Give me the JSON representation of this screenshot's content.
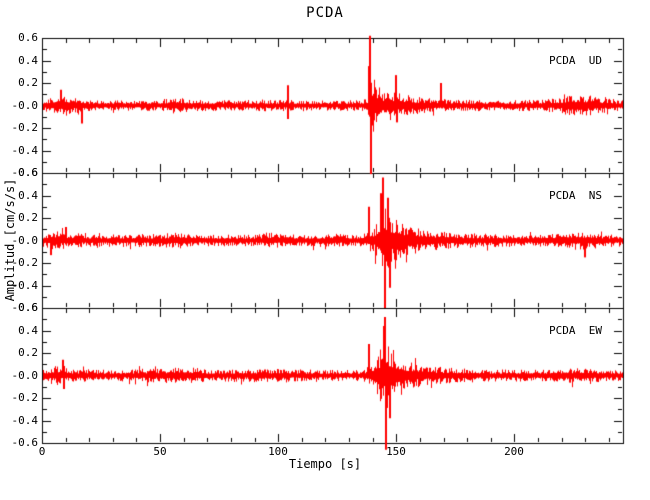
{
  "chart_data": {
    "type": "line",
    "title": "PCDA",
    "xlabel": "Tiempo [s]",
    "ylabel": "Amplitud [cm/s/s]",
    "x_range": [
      0,
      246
    ],
    "x_major_ticks": [
      0,
      50,
      100,
      150,
      200
    ],
    "x_major_tick_labels": [
      "0",
      "50",
      "100",
      "150",
      "200"
    ],
    "x_minor_step": 10,
    "ylim": [
      -0.6,
      0.6
    ],
    "y_tick_values": [
      0.6,
      0.4,
      0.2,
      0.0,
      -0.2,
      -0.4,
      -0.6
    ],
    "y_tick_labels": [
      "0.6",
      "0.4",
      "0.2",
      "-0.0",
      "-0.2",
      "-0.4",
      "-0.6"
    ],
    "y_minor_step": 0.1,
    "grid": false,
    "legend_position": "inside-top-right-per-panel",
    "trace_color": "#ff0000",
    "axis_color": "#000000",
    "background_color": "#ffffff",
    "panels": [
      {
        "label": "PCDA  UD",
        "seed": 101,
        "noise_floor": 0.045,
        "envelope": [
          [
            0,
            0.05
          ],
          [
            4,
            0.08
          ],
          [
            10,
            0.095
          ],
          [
            16,
            0.06
          ],
          [
            22,
            0.045
          ],
          [
            50,
            0.048
          ],
          [
            56,
            0.085
          ],
          [
            62,
            0.055
          ],
          [
            80,
            0.045
          ],
          [
            96,
            0.055
          ],
          [
            100,
            0.05
          ],
          [
            120,
            0.045
          ],
          [
            136,
            0.05
          ],
          [
            138.2,
            0.08
          ],
          [
            139,
            0.3
          ],
          [
            140,
            0.28
          ],
          [
            141.5,
            0.18
          ],
          [
            144,
            0.14
          ],
          [
            148,
            0.13
          ],
          [
            152,
            0.11
          ],
          [
            158,
            0.08
          ],
          [
            168,
            0.06
          ],
          [
            180,
            0.05
          ],
          [
            205,
            0.05
          ],
          [
            215,
            0.06
          ],
          [
            225,
            0.095
          ],
          [
            232,
            0.09
          ],
          [
            240,
            0.06
          ],
          [
            246,
            0.055
          ]
        ],
        "spikes": [
          [
            139.0,
            0.62
          ],
          [
            139.25,
            -0.61
          ],
          [
            138.6,
            0.35
          ],
          [
            104,
            0.18
          ],
          [
            104.3,
            -0.12
          ],
          [
            150,
            0.27
          ],
          [
            150.3,
            -0.15
          ],
          [
            169,
            0.2
          ],
          [
            17,
            -0.16
          ],
          [
            8,
            0.14
          ]
        ]
      },
      {
        "label": "PCDA  NS",
        "seed": 202,
        "noise_floor": 0.05,
        "envelope": [
          [
            0,
            0.055
          ],
          [
            5,
            0.085
          ],
          [
            12,
            0.07
          ],
          [
            20,
            0.055
          ],
          [
            50,
            0.06
          ],
          [
            57,
            0.075
          ],
          [
            65,
            0.055
          ],
          [
            90,
            0.05
          ],
          [
            96,
            0.075
          ],
          [
            102,
            0.055
          ],
          [
            115,
            0.055
          ],
          [
            125,
            0.06
          ],
          [
            136,
            0.055
          ],
          [
            138.3,
            0.1
          ],
          [
            140,
            0.09
          ],
          [
            142.5,
            0.22
          ],
          [
            144,
            0.35
          ],
          [
            145.5,
            0.3
          ],
          [
            148,
            0.22
          ],
          [
            152,
            0.17
          ],
          [
            157,
            0.12
          ],
          [
            165,
            0.09
          ],
          [
            175,
            0.07
          ],
          [
            190,
            0.06
          ],
          [
            210,
            0.055
          ],
          [
            222,
            0.08
          ],
          [
            230,
            0.085
          ],
          [
            238,
            0.06
          ],
          [
            246,
            0.055
          ]
        ],
        "spikes": [
          [
            144.2,
            0.56
          ],
          [
            145.3,
            -0.6
          ],
          [
            143.6,
            0.42
          ],
          [
            138.6,
            0.3
          ],
          [
            146.6,
            0.38
          ],
          [
            147.2,
            -0.42
          ],
          [
            10,
            0.12
          ],
          [
            4,
            -0.13
          ],
          [
            230,
            -0.15
          ]
        ]
      },
      {
        "label": "PCDA  EW",
        "seed": 303,
        "noise_floor": 0.045,
        "envelope": [
          [
            0,
            0.05
          ],
          [
            6,
            0.09
          ],
          [
            11,
            0.06
          ],
          [
            30,
            0.05
          ],
          [
            55,
            0.07
          ],
          [
            63,
            0.075
          ],
          [
            70,
            0.055
          ],
          [
            95,
            0.06
          ],
          [
            120,
            0.05
          ],
          [
            136,
            0.05
          ],
          [
            138.3,
            0.09
          ],
          [
            140,
            0.08
          ],
          [
            142.5,
            0.2
          ],
          [
            144.5,
            0.32
          ],
          [
            146.5,
            0.28
          ],
          [
            150,
            0.2
          ],
          [
            155,
            0.13
          ],
          [
            162,
            0.09
          ],
          [
            172,
            0.07
          ],
          [
            190,
            0.055
          ],
          [
            215,
            0.055
          ],
          [
            228,
            0.07
          ],
          [
            240,
            0.055
          ],
          [
            246,
            0.05
          ]
        ],
        "spikes": [
          [
            145.2,
            0.52
          ],
          [
            145.8,
            -0.66
          ],
          [
            144.6,
            0.44
          ],
          [
            138.6,
            0.28
          ],
          [
            147.3,
            -0.38
          ],
          [
            9,
            0.14
          ],
          [
            9.4,
            -0.12
          ]
        ]
      }
    ]
  }
}
